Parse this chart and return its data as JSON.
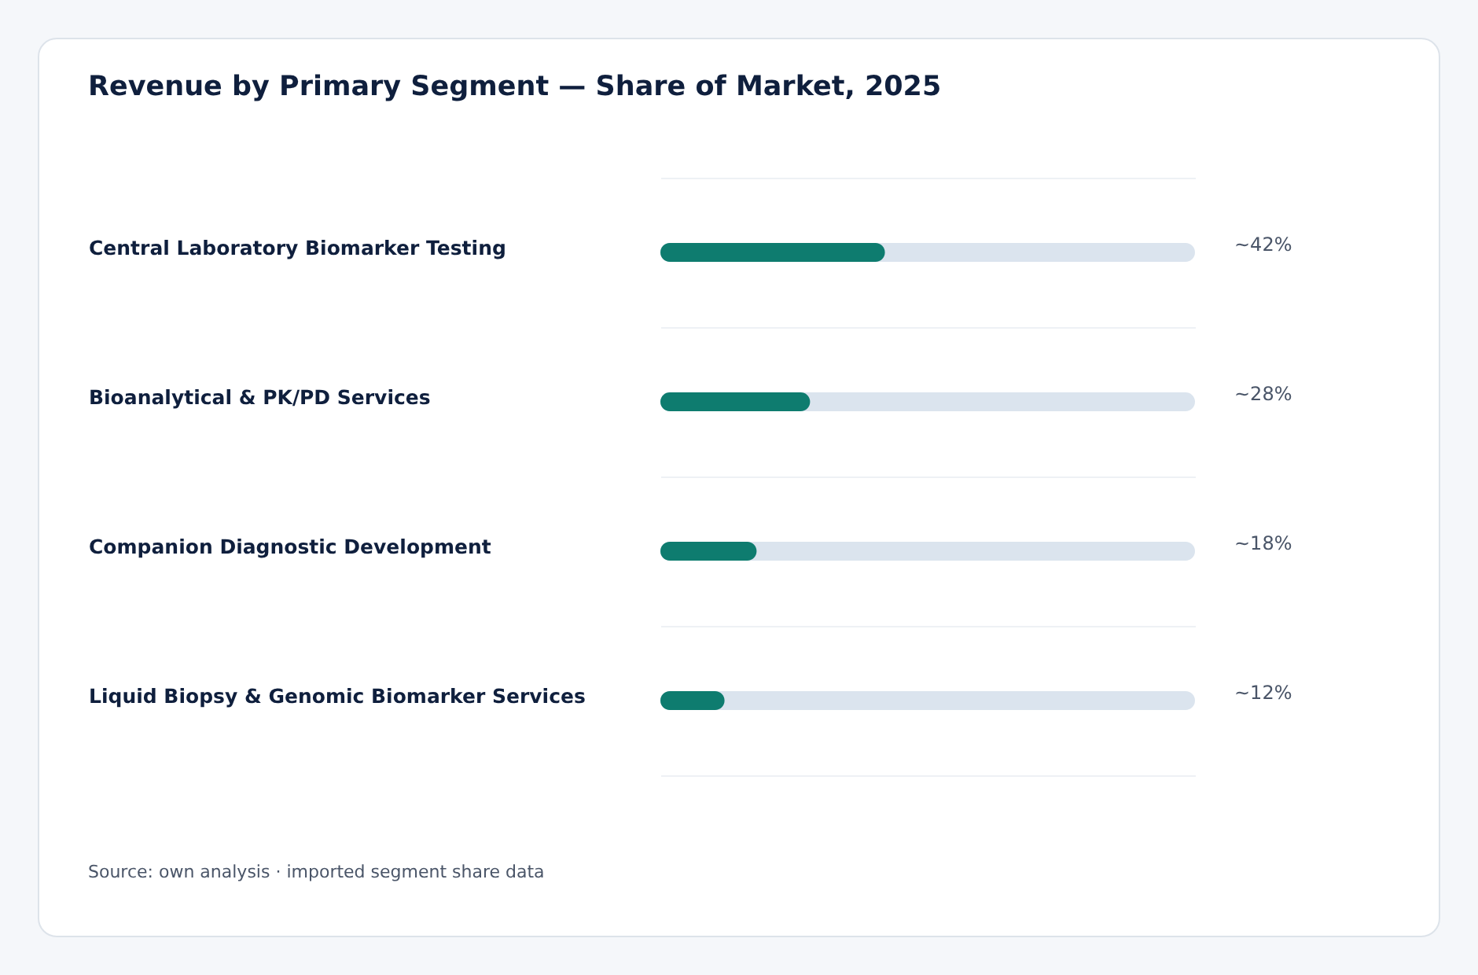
{
  "chart_data": {
    "type": "bar",
    "orientation": "horizontal",
    "title": "Revenue by Primary Segment — Share of Market, 2025",
    "categories": [
      "Central Laboratory Biomarker Testing",
      "Bioanalytical & PK/PD Services",
      "Companion Diagnostic Development",
      "Liquid Biopsy & Genomic Biomarker Services"
    ],
    "values": [
      42,
      28,
      18,
      12
    ],
    "value_labels": [
      "~42%",
      "~28%",
      "~18%",
      "~12%"
    ],
    "color": "#0e7c6f",
    "xlim": [
      0,
      100
    ],
    "tick_labels": "y",
    "grid": "y",
    "annotations": [
      "Source: own analysis · imported segment share data"
    ]
  }
}
